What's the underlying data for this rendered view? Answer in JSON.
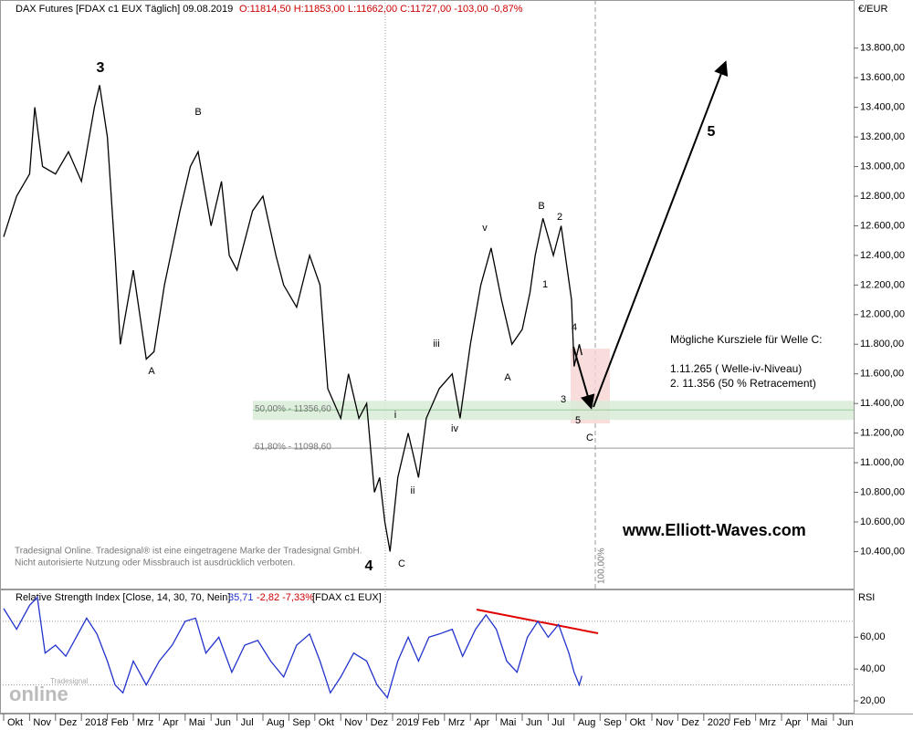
{
  "chart_data": [
    {
      "type": "line",
      "title": "DAX Futures [FDAX c1 EUX  Täglich] 09.08.2019",
      "ohlc": "O:11814,50 H:11853,00 L:11662,00 C:11727,00 -103,00 -0,87%",
      "unit": "€/EUR",
      "color": "#000000",
      "x": [
        0,
        0.5,
        1,
        1.2,
        1.5,
        2,
        2.5,
        3,
        3.5,
        3.7,
        4,
        4.3,
        4.5,
        5,
        5.5,
        5.8,
        6.2,
        6.8,
        7.2,
        7.5,
        8,
        8.4,
        8.7,
        9,
        9.6,
        10,
        10.5,
        10.8,
        11.3,
        11.8,
        12.2,
        12.5,
        13,
        13.3,
        13.7,
        14,
        14.3,
        14.5,
        14.7,
        14.9,
        15.2,
        15.6,
        16,
        16.3,
        16.8,
        17.3,
        17.6,
        18,
        18.4,
        18.8,
        19.2,
        19.6,
        20,
        20.3,
        20.5,
        20.8,
        21.2,
        21.5,
        21.9,
        22,
        22.2,
        22.3
      ],
      "values": [
        12525,
        12800,
        12950,
        13400,
        13000,
        12950,
        13100,
        12900,
        13400,
        13550,
        13200,
        12400,
        11800,
        12300,
        11700,
        11750,
        12200,
        12700,
        13000,
        13100,
        12600,
        12900,
        12400,
        12300,
        12700,
        12800,
        12400,
        12200,
        12050,
        12400,
        12200,
        11500,
        11300,
        11600,
        11300,
        11400,
        10800,
        10900,
        10600,
        10400,
        10900,
        11200,
        10900,
        11300,
        11500,
        11600,
        11300,
        11800,
        12200,
        12450,
        12100,
        11800,
        11900,
        12150,
        12400,
        12650,
        12400,
        12600,
        12100,
        11650,
        11800,
        11727
      ],
      "xlim": [
        -0.14,
        32.78
      ],
      "xticks": [
        {
          "value": 0,
          "label": "Okt"
        },
        {
          "value": 1,
          "label": "Nov"
        },
        {
          "value": 2,
          "label": "Dez"
        },
        {
          "value": 3,
          "label": "2018"
        },
        {
          "value": 4,
          "label": "Feb"
        },
        {
          "value": 5,
          "label": "Mrz"
        },
        {
          "value": 6,
          "label": "Apr"
        },
        {
          "value": 7,
          "label": "Mai"
        },
        {
          "value": 8,
          "label": "Jun"
        },
        {
          "value": 9,
          "label": "Jul"
        },
        {
          "value": 10,
          "label": "Aug"
        },
        {
          "value": 11,
          "label": "Sep"
        },
        {
          "value": 12,
          "label": "Okt"
        },
        {
          "value": 13,
          "label": "Nov"
        },
        {
          "value": 14,
          "label": "Dez"
        },
        {
          "value": 15,
          "label": "2019"
        },
        {
          "value": 16,
          "label": "Feb"
        },
        {
          "value": 17,
          "label": "Mrz"
        },
        {
          "value": 18,
          "label": "Apr"
        },
        {
          "value": 19,
          "label": "Mai"
        },
        {
          "value": 20,
          "label": "Jun"
        },
        {
          "value": 21,
          "label": "Jul"
        },
        {
          "value": 22,
          "label": "Aug"
        },
        {
          "value": 23,
          "label": "Sep"
        },
        {
          "value": 24,
          "label": "Okt"
        },
        {
          "value": 25,
          "label": "Nov"
        },
        {
          "value": 26,
          "label": "Dez"
        },
        {
          "value": 27,
          "label": "2020"
        },
        {
          "value": 28,
          "label": "Feb"
        },
        {
          "value": 29,
          "label": "Mrz"
        },
        {
          "value": 30,
          "label": "Apr"
        },
        {
          "value": 31,
          "label": "Mai"
        },
        {
          "value": 32,
          "label": "Jun"
        }
      ],
      "ylim": [
        10150,
        14125
      ],
      "yticks": [
        {
          "value": 10400,
          "label": "10.400,00"
        },
        {
          "value": 10600,
          "label": "10.600,00"
        },
        {
          "value": 10800,
          "label": "10.800,00"
        },
        {
          "value": 11000,
          "label": "11.000,00"
        },
        {
          "value": 11200,
          "label": "11.200,00"
        },
        {
          "value": 11400,
          "label": "11.400,00"
        },
        {
          "value": 11600,
          "label": "11.600,00"
        },
        {
          "value": 11800,
          "label": "11.800,00"
        },
        {
          "value": 12000,
          "label": "12.000,00"
        },
        {
          "value": 12200,
          "label": "12.200,00"
        },
        {
          "value": 12400,
          "label": "12.400,00"
        },
        {
          "value": 12600,
          "label": "12.600,00"
        },
        {
          "value": 12800,
          "label": "12.800,00"
        },
        {
          "value": 13000,
          "label": "13.000,00"
        },
        {
          "value": 13200,
          "label": "13.200,00"
        },
        {
          "value": 13400,
          "label": "13.400,00"
        },
        {
          "value": 13600,
          "label": "13.600,00"
        },
        {
          "value": 13800,
          "label": "13.800,00"
        }
      ],
      "levels": [
        {
          "value": 11356.6,
          "label": "50,00% - 11356,60"
        },
        {
          "value": 11098.6,
          "label": "61,80% - 11098,60"
        }
      ],
      "annotations": [
        "3",
        "B",
        "A",
        "4",
        "C",
        "i",
        "ii",
        "iii",
        "iv",
        "v",
        "A",
        "B",
        "2",
        "1",
        "4",
        "3",
        "5",
        "C",
        "5",
        "100,00%",
        "Mögliche Kursziele für Welle C:",
        "1.11.265 ( Welle-iv-Niveau)",
        "2.  11.356 (50 % Retracement)"
      ]
    },
    {
      "type": "line",
      "title": "Relative Strength Index [Close, 14, 30, 70, Nein]",
      "readout": "35,71",
      "change": "-2,82 -7,33%",
      "source": "[FDAX c1 EUX]",
      "axis_label": "RSI",
      "color": "#2233cc",
      "x": [
        0,
        0.5,
        1,
        1.3,
        1.6,
        2,
        2.4,
        2.8,
        3.2,
        3.6,
        4,
        4.3,
        4.6,
        5,
        5.5,
        6,
        6.5,
        7,
        7.4,
        7.8,
        8.3,
        8.8,
        9.3,
        9.8,
        10.3,
        10.8,
        11.3,
        11.8,
        12.2,
        12.6,
        13,
        13.5,
        14,
        14.4,
        14.8,
        15.2,
        15.6,
        16,
        16.4,
        16.8,
        17.3,
        17.7,
        18.2,
        18.6,
        19,
        19.4,
        19.8,
        20.2,
        20.6,
        21,
        21.4,
        21.8,
        22,
        22.2,
        22.3
      ],
      "values": [
        78,
        65,
        80,
        85,
        50,
        55,
        48,
        60,
        72,
        62,
        45,
        30,
        25,
        45,
        30,
        45,
        55,
        70,
        72,
        50,
        60,
        38,
        55,
        58,
        45,
        35,
        55,
        62,
        45,
        25,
        35,
        50,
        45,
        30,
        22,
        45,
        60,
        45,
        60,
        62,
        65,
        48,
        65,
        74,
        65,
        45,
        38,
        60,
        70,
        60,
        68,
        50,
        38,
        30,
        35.71
      ],
      "ylim": [
        12,
        90
      ],
      "yticks": [
        {
          "value": 20,
          "label": "20,00"
        },
        {
          "value": 40,
          "label": "40,00"
        },
        {
          "value": 60,
          "label": "60,00"
        }
      ],
      "levels": [
        30,
        70
      ]
    }
  ],
  "watermark": {
    "disclaimer": [
      "Tradesignal Online. Tradesignal® ist eine eingetragene Marke der Tradesignal GmbH.",
      "Nicht autorisierte Nutzung oder Missbrauch ist ausdrücklich verboten."
    ],
    "website": "www.Elliott-Waves.com",
    "logo": "online",
    "logo_small": "Tradesignal"
  }
}
